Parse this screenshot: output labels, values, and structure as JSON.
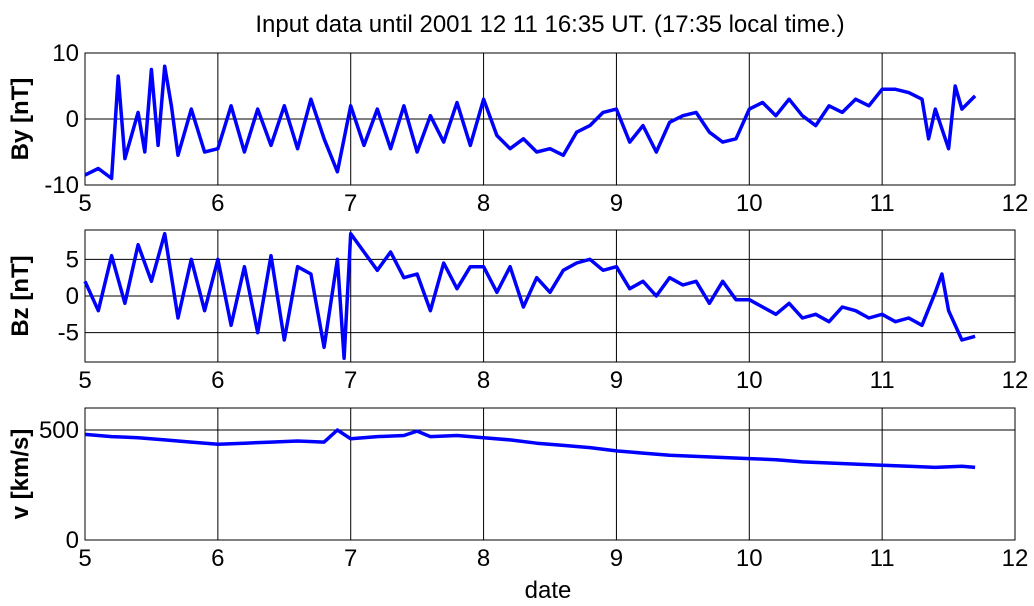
{
  "chart_data": {
    "type": "line",
    "title": "Input data until 2001  12  11  16:35 UT. (17:35 local time.)",
    "xlabel": "date",
    "line_color": "#0000ff",
    "grid": true,
    "panels": [
      {
        "ylabel": "By [nT]",
        "xlim": [
          5,
          12
        ],
        "ylim": [
          -10,
          10
        ],
        "xticks": [
          "5",
          "6",
          "7",
          "8",
          "9",
          "10",
          "11",
          "12"
        ],
        "yticks": [
          {
            "value": -10,
            "label": "-10"
          },
          {
            "value": 0,
            "label": "0"
          },
          {
            "value": 10,
            "label": "10"
          }
        ],
        "series": [
          {
            "x": [
              5.0,
              5.1,
              5.2,
              5.25,
              5.3,
              5.4,
              5.45,
              5.5,
              5.55,
              5.6,
              5.65,
              5.7,
              5.8,
              5.9,
              6.0,
              6.1,
              6.2,
              6.3,
              6.4,
              6.5,
              6.6,
              6.7,
              6.8,
              6.9,
              7.0,
              7.1,
              7.2,
              7.3,
              7.4,
              7.5,
              7.6,
              7.7,
              7.8,
              7.9,
              8.0,
              8.1,
              8.2,
              8.3,
              8.4,
              8.5,
              8.6,
              8.7,
              8.8,
              8.9,
              9.0,
              9.1,
              9.2,
              9.3,
              9.4,
              9.5,
              9.6,
              9.7,
              9.8,
              9.9,
              10.0,
              10.1,
              10.2,
              10.3,
              10.4,
              10.5,
              10.6,
              10.7,
              10.8,
              10.9,
              11.0,
              11.1,
              11.2,
              11.3,
              11.35,
              11.4,
              11.5,
              11.55,
              11.6,
              11.7
            ],
            "values": [
              -8.5,
              -7.5,
              -9.0,
              6.5,
              -6.0,
              1.0,
              -5.0,
              7.5,
              -4.0,
              8.0,
              2.0,
              -5.5,
              1.5,
              -5.0,
              -4.5,
              2.0,
              -5.0,
              1.5,
              -4.0,
              2.0,
              -4.5,
              3.0,
              -3.0,
              -8.0,
              2.0,
              -4.0,
              1.5,
              -4.5,
              2.0,
              -5.0,
              0.5,
              -3.5,
              2.5,
              -4.0,
              3.0,
              -2.5,
              -4.5,
              -3.0,
              -5.0,
              -4.5,
              -5.5,
              -2.0,
              -1.0,
              1.0,
              1.5,
              -3.5,
              -1.0,
              -5.0,
              -0.5,
              0.5,
              1.0,
              -2.0,
              -3.5,
              -3.0,
              1.5,
              2.5,
              0.5,
              3.0,
              0.5,
              -1.0,
              2.0,
              1.0,
              3.0,
              2.0,
              4.5,
              4.5,
              4.0,
              3.0,
              -3.0,
              1.5,
              -4.5,
              5.0,
              1.5,
              3.5
            ]
          }
        ]
      },
      {
        "ylabel": "Bz [nT]",
        "xlim": [
          5,
          12
        ],
        "ylim": [
          -9,
          9
        ],
        "xticks": [
          "5",
          "6",
          "7",
          "8",
          "9",
          "10",
          "11",
          "12"
        ],
        "yticks": [
          {
            "value": -5,
            "label": "-5"
          },
          {
            "value": 0,
            "label": "0"
          },
          {
            "value": 5,
            "label": "5"
          }
        ],
        "series": [
          {
            "x": [
              5.0,
              5.1,
              5.2,
              5.3,
              5.4,
              5.5,
              5.6,
              5.7,
              5.8,
              5.9,
              6.0,
              6.1,
              6.2,
              6.3,
              6.4,
              6.5,
              6.6,
              6.7,
              6.8,
              6.9,
              6.95,
              7.0,
              7.1,
              7.2,
              7.3,
              7.4,
              7.5,
              7.6,
              7.7,
              7.8,
              7.9,
              8.0,
              8.1,
              8.2,
              8.3,
              8.4,
              8.5,
              8.6,
              8.7,
              8.8,
              8.9,
              9.0,
              9.1,
              9.2,
              9.3,
              9.4,
              9.5,
              9.6,
              9.7,
              9.8,
              9.9,
              10.0,
              10.1,
              10.2,
              10.3,
              10.4,
              10.5,
              10.6,
              10.7,
              10.8,
              10.9,
              11.0,
              11.1,
              11.2,
              11.3,
              11.4,
              11.45,
              11.5,
              11.6,
              11.7
            ],
            "values": [
              2.0,
              -2.0,
              5.5,
              -1.0,
              7.0,
              2.0,
              8.5,
              -3.0,
              5.0,
              -2.0,
              5.0,
              -4.0,
              4.0,
              -5.0,
              5.5,
              -6.0,
              4.0,
              3.0,
              -7.0,
              5.0,
              -8.5,
              8.5,
              6.0,
              3.5,
              6.0,
              2.5,
              3.0,
              -2.0,
              4.5,
              1.0,
              4.0,
              4.0,
              0.5,
              4.0,
              -1.5,
              2.5,
              0.5,
              3.5,
              4.5,
              5.0,
              3.5,
              4.0,
              1.0,
              2.0,
              0.0,
              2.5,
              1.5,
              2.0,
              -1.0,
              2.0,
              -0.5,
              -0.5,
              -1.5,
              -2.5,
              -1.0,
              -3.0,
              -2.5,
              -3.5,
              -1.5,
              -2.0,
              -3.0,
              -2.5,
              -3.5,
              -3.0,
              -4.0,
              0.5,
              3.0,
              -2.0,
              -6.0,
              -5.5
            ]
          }
        ]
      },
      {
        "ylabel": "v [km/s]",
        "xlim": [
          5,
          12
        ],
        "ylim": [
          0,
          600
        ],
        "xticks": [
          "5",
          "6",
          "7",
          "8",
          "9",
          "10",
          "11",
          "12"
        ],
        "yticks": [
          {
            "value": 0,
            "label": "0"
          },
          {
            "value": 500,
            "label": "500"
          }
        ],
        "series": [
          {
            "x": [
              5.0,
              5.2,
              5.4,
              5.6,
              5.8,
              6.0,
              6.2,
              6.4,
              6.6,
              6.8,
              6.9,
              7.0,
              7.2,
              7.4,
              7.5,
              7.6,
              7.8,
              8.0,
              8.2,
              8.4,
              8.6,
              8.8,
              9.0,
              9.2,
              9.4,
              9.6,
              9.8,
              10.0,
              10.2,
              10.4,
              10.6,
              10.8,
              11.0,
              11.2,
              11.4,
              11.6,
              11.7
            ],
            "values": [
              480,
              470,
              465,
              455,
              445,
              435,
              440,
              445,
              450,
              445,
              500,
              460,
              470,
              475,
              495,
              470,
              475,
              465,
              455,
              440,
              430,
              420,
              405,
              395,
              385,
              380,
              375,
              370,
              365,
              355,
              350,
              345,
              340,
              335,
              330,
              335,
              330
            ]
          }
        ]
      }
    ]
  }
}
